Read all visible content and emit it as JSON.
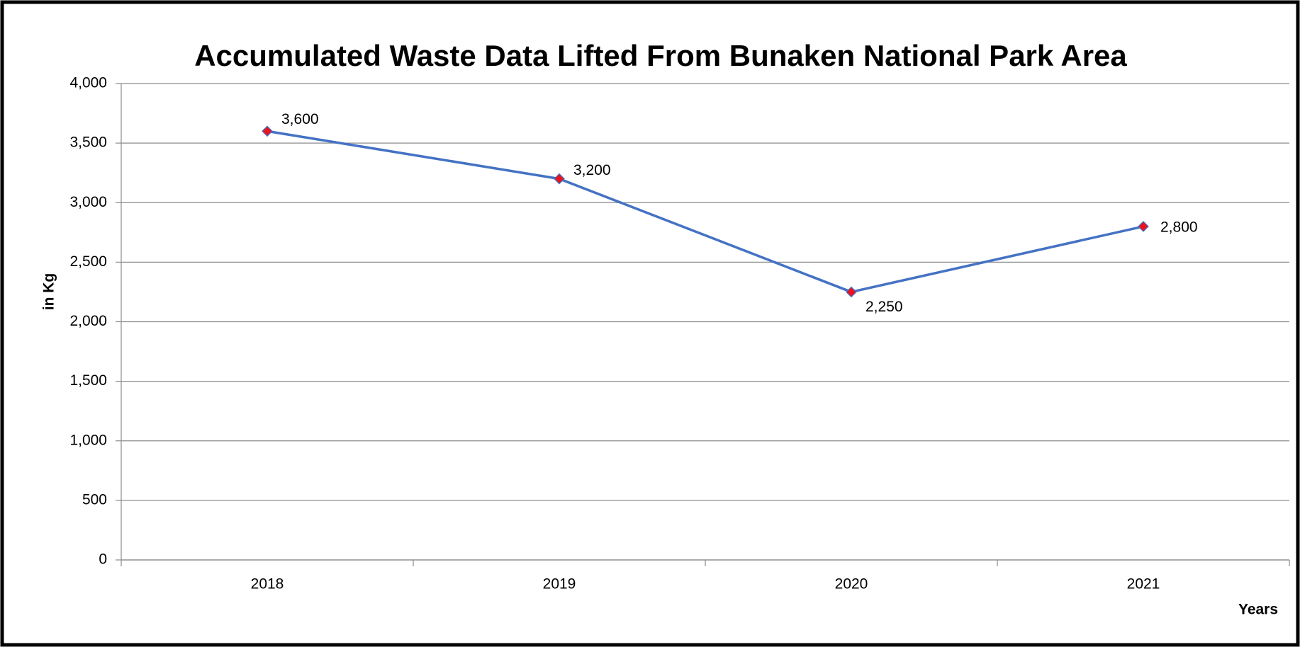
{
  "chart_data": {
    "type": "line",
    "title": "Accumulated Waste Data Lifted From Bunaken National Park Area",
    "x_label": "Years",
    "y_label": "in Kg",
    "categories": [
      "2018",
      "2019",
      "2020",
      "2021"
    ],
    "series": [
      {
        "name": "Accumulated Waste",
        "color": "#4472c4",
        "marker_color": "#e8141f",
        "values": [
          3600,
          3200,
          2250,
          2800
        ],
        "value_labels": [
          "3,600",
          "3,200",
          "2,250",
          "2,800"
        ]
      }
    ],
    "ylim": [
      0,
      4000
    ],
    "yticks": [
      0,
      500,
      {
        "value": 1000,
        "label": "1,000"
      },
      {
        "value": 1500,
        "label": "1,500"
      },
      {
        "value": 2000,
        "label": "2,000"
      },
      {
        "value": 2500,
        "label": "2,500"
      },
      {
        "value": 3000,
        "label": "3,000"
      },
      {
        "value": 3500,
        "label": "3,500"
      },
      {
        "value": 4000,
        "label": "4,000"
      }
    ],
    "grid": true
  }
}
